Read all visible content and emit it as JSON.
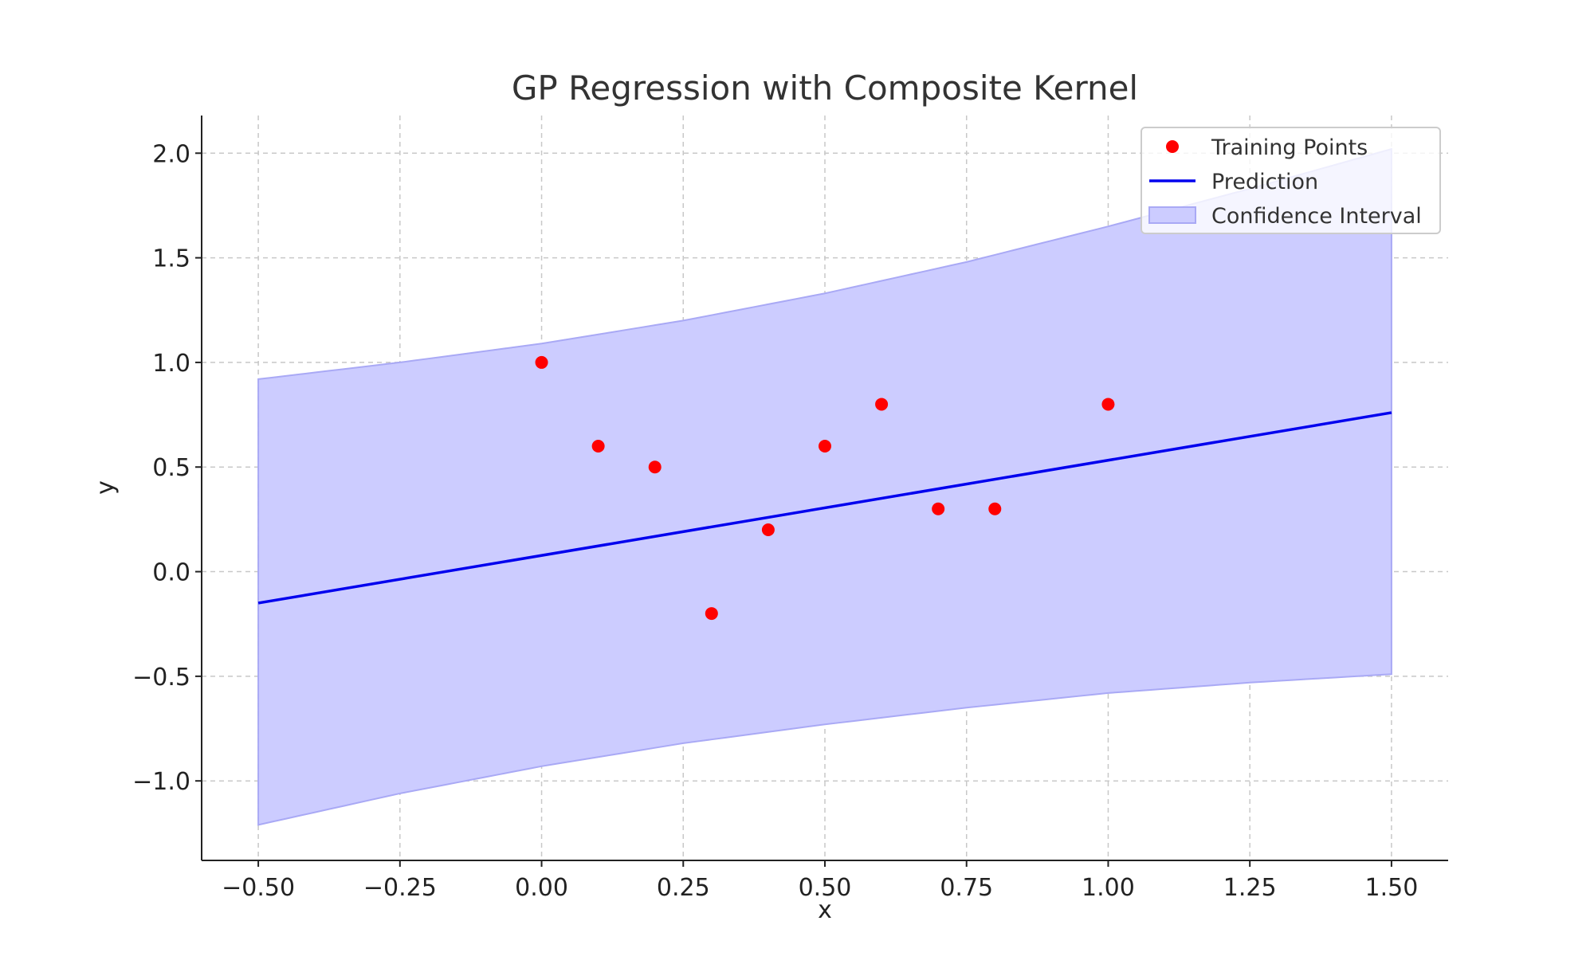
{
  "chart_data": {
    "type": "line",
    "title": "GP Regression with Composite Kernel",
    "xlabel": "x",
    "ylabel": "y",
    "xlim": [
      -0.6,
      1.6
    ],
    "ylim": [
      -1.38,
      2.18
    ],
    "xticks": [
      -0.5,
      -0.25,
      0.0,
      0.25,
      0.5,
      0.75,
      1.0,
      1.25,
      1.5
    ],
    "xtick_labels": [
      "−0.50",
      "−0.25",
      "0.00",
      "0.25",
      "0.50",
      "0.75",
      "1.00",
      "1.25",
      "1.50"
    ],
    "yticks": [
      -1.0,
      -0.5,
      0.0,
      0.5,
      1.0,
      1.5,
      2.0
    ],
    "ytick_labels": [
      "−1.0",
      "−0.5",
      "0.0",
      "0.5",
      "1.0",
      "1.5",
      "2.0"
    ],
    "grid": true,
    "legend_position": "top-right",
    "series": [
      {
        "name": "Training Points",
        "kind": "scatter",
        "color": "#ff0000",
        "x": [
          0.0,
          0.1,
          0.2,
          0.3,
          0.4,
          0.5,
          0.6,
          0.7,
          0.8,
          1.0
        ],
        "y": [
          1.0,
          0.6,
          0.5,
          -0.2,
          0.2,
          0.6,
          0.8,
          0.3,
          0.3,
          0.8
        ]
      },
      {
        "name": "Prediction",
        "kind": "line",
        "color": "#0000ee",
        "x": [
          -0.5,
          1.5
        ],
        "y": [
          -0.15,
          0.76
        ]
      },
      {
        "name": "Confidence Interval",
        "kind": "band",
        "color": "#ccccff",
        "edge_color": "#a9a9f5",
        "x": [
          -0.5,
          -0.25,
          0.0,
          0.25,
          0.5,
          0.75,
          1.0,
          1.25,
          1.5
        ],
        "lower": [
          -1.21,
          -1.06,
          -0.93,
          -0.82,
          -0.73,
          -0.65,
          -0.58,
          -0.53,
          -0.49
        ],
        "upper": [
          0.92,
          1.0,
          1.09,
          1.2,
          1.33,
          1.48,
          1.65,
          1.83,
          2.02
        ]
      }
    ]
  }
}
